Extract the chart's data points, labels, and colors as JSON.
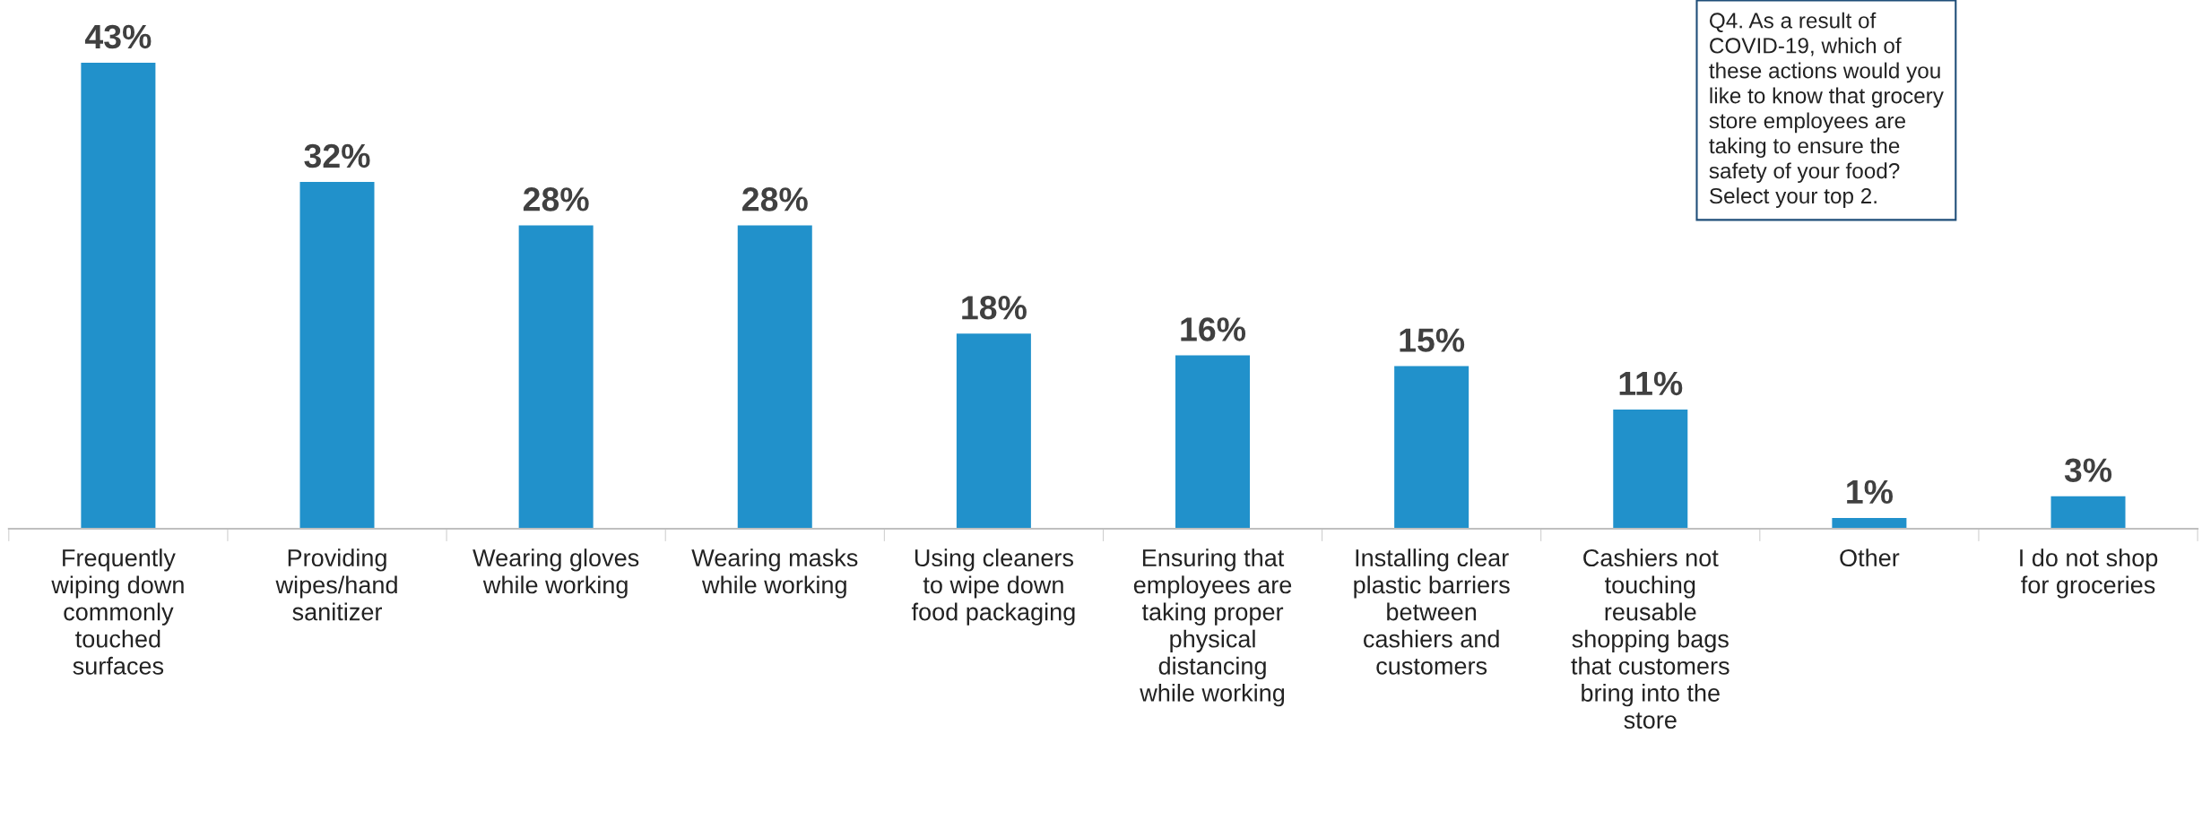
{
  "chart_data": {
    "type": "bar",
    "categories": [
      "Frequently\nwiping down\ncommonly\ntouched\nsurfaces",
      "Providing\nwipes/hand\nsanitizer",
      "Wearing gloves\nwhile working",
      "Wearing masks\nwhile working",
      "Using cleaners\nto wipe down\nfood packaging",
      "Ensuring that\nemployees are\ntaking proper\nphysical\ndistancing\nwhile working",
      "Installing clear\nplastic barriers\nbetween\ncashiers and\ncustomers",
      "Cashiers not\ntouching\nreusable\nshopping bags\nthat customers\nbring into the\nstore",
      "Other",
      "I do not shop\nfor groceries"
    ],
    "values": [
      43,
      32,
      28,
      28,
      18,
      16,
      15,
      11,
      1,
      3
    ],
    "value_labels": [
      "43%",
      "32%",
      "28%",
      "28%",
      "18%",
      "16%",
      "15%",
      "11%",
      "1%",
      "3%"
    ],
    "color": "#2191cb",
    "annotations": [
      "Q4. As a result of\nCOVID-19, which of\nthese actions would you\nlike to know that grocery\nstore employees are\ntaking to ensure the\nsafety of your food?\nSelect your top 2."
    ],
    "grid": false,
    "legend": false
  }
}
